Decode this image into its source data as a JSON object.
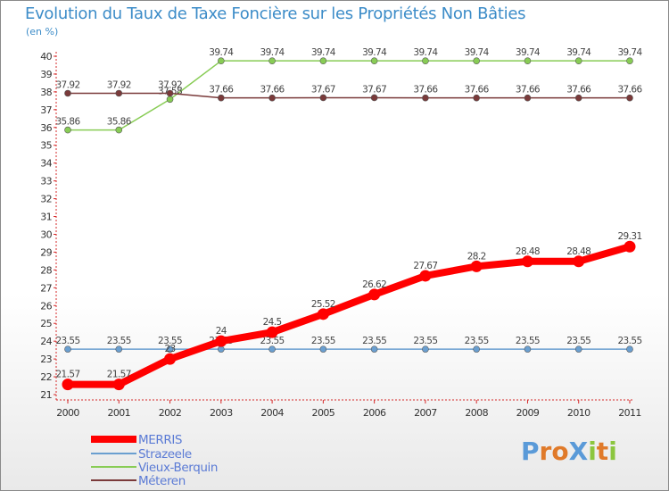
{
  "chart_data": {
    "type": "line",
    "title": "Evolution du Taux de Taxe Foncière sur les Propriétés Non Bâties",
    "ylabel": "(en %)",
    "x": [
      "2000",
      "2001",
      "2002",
      "2003",
      "2004",
      "2005",
      "2006",
      "2007",
      "2008",
      "2009",
      "2010",
      "2011"
    ],
    "ylim": [
      21,
      40
    ],
    "yticks": [
      21,
      22,
      23,
      24,
      25,
      26,
      27,
      28,
      29,
      30,
      31,
      32,
      33,
      34,
      35,
      36,
      37,
      38,
      39,
      40
    ],
    "grid": false,
    "legend_position": "bottom-left",
    "series": [
      {
        "name": "MERRIS",
        "color": "#ff0000",
        "values": [
          21.57,
          21.57,
          23.0,
          24.0,
          24.5,
          25.52,
          26.62,
          27.67,
          28.2,
          28.48,
          28.48,
          29.31
        ],
        "labels": [
          "21.57",
          "21.57",
          "23",
          "24",
          "24.5",
          "25.52",
          "26.62",
          "27.67",
          "28.2",
          "28.48",
          "28.48",
          "29.31"
        ]
      },
      {
        "name": "Strazeele",
        "color": "#6a9fd0",
        "values": [
          23.55,
          23.55,
          23.55,
          23.55,
          23.55,
          23.55,
          23.55,
          23.55,
          23.55,
          23.55,
          23.55,
          23.55
        ],
        "labels": [
          "23.55",
          "23.55",
          "23.55",
          "23.55",
          "23.55",
          "23.55",
          "23.55",
          "23.55",
          "23.55",
          "23.55",
          "23.55",
          "23.55"
        ]
      },
      {
        "name": "Vieux-Berquin",
        "color": "#88cc55",
        "values": [
          35.86,
          35.86,
          37.58,
          39.74,
          39.74,
          39.74,
          39.74,
          39.74,
          39.74,
          39.74,
          39.74,
          39.74
        ],
        "labels": [
          "35.86",
          "35.86",
          "37.58",
          "39.74",
          "39.74",
          "39.74",
          "39.74",
          "39.74",
          "39.74",
          "39.74",
          "39.74",
          "39.74"
        ]
      },
      {
        "name": "Méteren",
        "color": "#7a3a3a",
        "values": [
          37.92,
          37.92,
          37.92,
          37.66,
          37.66,
          37.67,
          37.67,
          37.66,
          37.66,
          37.66,
          37.66,
          37.66
        ],
        "labels": [
          "37.92",
          "37.92",
          "37.92",
          "37.66",
          "37.66",
          "37.67",
          "37.67",
          "37.66",
          "37.66",
          "37.66",
          "37.66",
          "37.66"
        ]
      }
    ]
  },
  "logo": {
    "text": "ProXiti",
    "letters": [
      {
        "ch": "P",
        "color": "#5a9ad8"
      },
      {
        "ch": "r",
        "color": "#e07a2a"
      },
      {
        "ch": "o",
        "color": "#e07a2a"
      },
      {
        "ch": "X",
        "color": "#5a9ad8"
      },
      {
        "ch": "i",
        "color": "#8cc63f"
      },
      {
        "ch": "t",
        "color": "#e07a2a"
      },
      {
        "ch": "i",
        "color": "#8cc63f"
      }
    ]
  }
}
